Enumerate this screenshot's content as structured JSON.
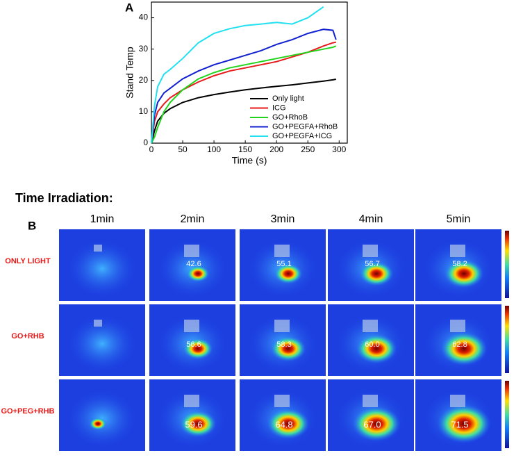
{
  "chart_data": {
    "type": "line",
    "panel_label": "A",
    "xlabel": "Time (s)",
    "ylabel": "Stand Temp",
    "x": [
      0,
      5,
      10,
      20,
      30,
      50,
      75,
      100,
      125,
      150,
      175,
      200,
      225,
      250,
      275,
      290,
      295
    ],
    "xlim": [
      0,
      313
    ],
    "xticks": [
      0,
      50,
      100,
      150,
      200,
      250,
      300
    ],
    "ylim": [
      0,
      45
    ],
    "yticks": [
      0,
      10,
      20,
      30,
      40
    ],
    "legend": "lower-right",
    "series": [
      {
        "name": "Only light",
        "color": "#000000",
        "values": [
          0,
          4,
          7,
          9.5,
          11,
          13,
          14.5,
          15.5,
          16.3,
          17,
          17.6,
          18.1,
          18.6,
          19.2,
          19.8,
          20.2,
          20.4
        ]
      },
      {
        "name": "ICG",
        "color": "#e8191a",
        "values": [
          0,
          7,
          10,
          12.5,
          14.5,
          17,
          19.5,
          21.5,
          23,
          24,
          25,
          26,
          27.5,
          29,
          31,
          32,
          32.2
        ]
      },
      {
        "name": "GO+RhoB",
        "color": "#22d41c",
        "values": [
          0,
          2,
          5,
          10,
          13,
          17,
          20.5,
          22.5,
          24,
          25,
          26,
          27,
          28,
          29,
          30,
          30.6,
          31
        ]
      },
      {
        "name": "GO+PEGFA+RhoB",
        "color": "#1020d0",
        "values": [
          0,
          9,
          13,
          16,
          17.5,
          20.5,
          23,
          25,
          26.5,
          28,
          29.5,
          31.5,
          33,
          35,
          36.3,
          36,
          33
        ]
      },
      {
        "name": "GO+PEGFA+ICG",
        "color": "#22e0f0",
        "values": [
          0,
          12,
          18,
          22,
          23.5,
          27,
          32,
          35,
          36.5,
          37.5,
          38,
          38.5,
          38,
          40,
          43.5,
          null,
          null
        ]
      }
    ]
  },
  "panel_b": {
    "title": "Time Irradiation:",
    "label": "B",
    "columns": [
      "1min",
      "2min",
      "3min",
      "4min",
      "5min"
    ],
    "rows": [
      {
        "name": "ONLY LIGHT",
        "temps": [
          "42.6",
          "55.1",
          "56.7",
          "58.2"
        ]
      },
      {
        "name": "GO+RHB",
        "temps": [
          "56.6",
          "58.3",
          "60.0",
          "62.8"
        ]
      },
      {
        "name": "GO+PEG+RHB",
        "temps": [
          "59.6",
          "64.8",
          "67.0",
          "71.5"
        ]
      }
    ]
  }
}
